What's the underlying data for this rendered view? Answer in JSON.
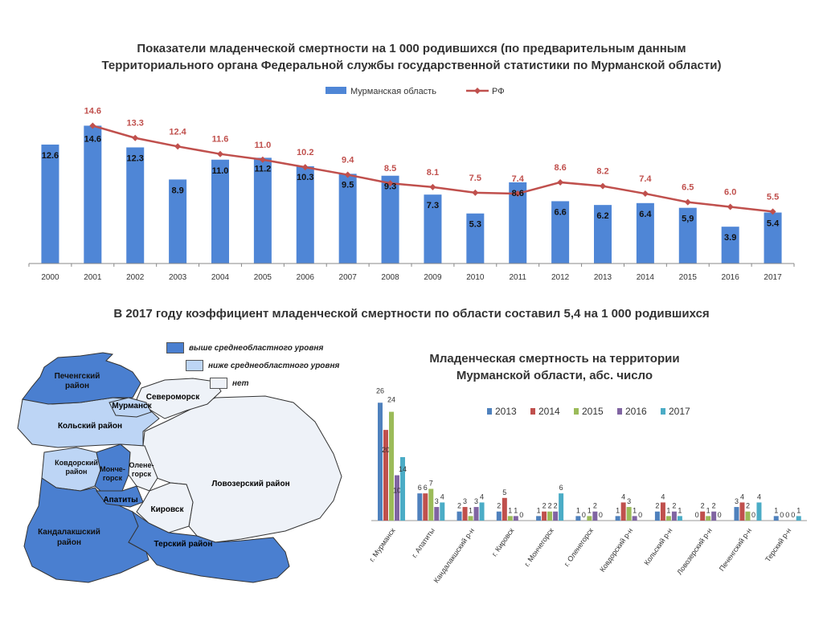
{
  "header": {
    "title_line1": "Показатели младенческой смертности на 1 000 родившихся (по предварительным данным",
    "title_line2": "Территориального органа Федеральной службы государственной статистики по Мурманской области)"
  },
  "chart_data": [
    {
      "type": "bar",
      "categories": [
        "2000",
        "2001",
        "2002",
        "2003",
        "2004",
        "2005",
        "2006",
        "2007",
        "2008",
        "2009",
        "2010",
        "2011",
        "2012",
        "2013",
        "2014",
        "2015",
        "2016",
        "2017"
      ],
      "series": [
        {
          "name": "Мурманская область",
          "kind": "bar",
          "color": "#4F86D6",
          "values": [
            12.6,
            14.6,
            12.3,
            8.9,
            11.0,
            11.2,
            10.3,
            9.5,
            9.3,
            7.3,
            5.3,
            8.6,
            6.6,
            6.2,
            6.4,
            5.9,
            3.9,
            5.4
          ],
          "labels": [
            "12.6",
            "14.6",
            "12.3",
            "8.9",
            "11.0",
            "11.2",
            "10.3",
            "9.5",
            "9.3",
            "7.3",
            "5.3",
            "8.6",
            "6.6",
            "6.2",
            "6.4",
            "5,9",
            "3.9",
            "5.4"
          ]
        },
        {
          "name": "РФ",
          "kind": "line",
          "color": "#C0504D",
          "values": [
            null,
            14.6,
            13.3,
            12.4,
            11.6,
            11.0,
            10.2,
            9.4,
            8.5,
            8.1,
            7.5,
            7.4,
            8.6,
            8.2,
            7.4,
            6.5,
            6.0,
            5.5
          ],
          "labels": [
            "",
            "14.6",
            "13.3",
            "12.4",
            "11.6",
            "11.0",
            "10.2",
            "9.4",
            "8.5",
            "8.1",
            "7.5",
            "7.4",
            "8.6",
            "8.2",
            "7.4",
            "6.5",
            "6.0",
            "5.5"
          ]
        }
      ],
      "legend": "top",
      "ylim": [
        0,
        16
      ]
    },
    {
      "type": "bar",
      "title": "Младенческая смертность на территории Мурманской области, абс. число",
      "categories": [
        "г. Мурманск",
        "г. Апатиты",
        "Кандалакшский р-н",
        "г. Кировск",
        "г. Мончегорск",
        "г. Оленегорск",
        "Ковдорский р-н",
        "Кольский р-н",
        "Ловозерский р-н",
        "Печенгский р-н",
        "Терский р-н"
      ],
      "series": [
        {
          "name": "2013",
          "color": "#4F81BD",
          "values": [
            26,
            6,
            2,
            2,
            1,
            1,
            1,
            2,
            0,
            3,
            1
          ]
        },
        {
          "name": "2014",
          "color": "#C0504D",
          "values": [
            20,
            6,
            3,
            5,
            2,
            0,
            4,
            4,
            2,
            4,
            0
          ]
        },
        {
          "name": "2015",
          "color": "#9BBB59",
          "values": [
            24,
            7,
            1,
            1,
            2,
            1,
            3,
            1,
            1,
            2,
            0
          ]
        },
        {
          "name": "2016",
          "color": "#8064A2",
          "values": [
            10,
            3,
            3,
            1,
            2,
            2,
            1,
            2,
            2,
            0,
            0
          ]
        },
        {
          "name": "2017",
          "color": "#4BACC6",
          "values": [
            14,
            4,
            4,
            0,
            6,
            0,
            0,
            1,
            0,
            4,
            1
          ]
        }
      ],
      "legend": "top-right",
      "ylim": [
        0,
        28
      ]
    }
  ],
  "subtitle": "В 2017 году коэффициент младенческой смертности по области составил 5,4 на 1 000 родившихся",
  "map": {
    "legend": [
      {
        "label": "выше среднеобластного уровня",
        "color": "#4A7FD0"
      },
      {
        "label": "ниже среднеобластного уровня",
        "color": "#BDD5F5"
      },
      {
        "label": "нет",
        "color": "#EEF2F8"
      }
    ],
    "regions": {
      "pechenga": "Печенгский район",
      "murmansk": "Мурманск",
      "severomorsk": "Североморск",
      "kola": "Кольский район",
      "kovdor": "Ковдорский район",
      "monchegorsk": "Монче-горск",
      "olenegorsk": "Олене-горск",
      "lovozero": "Ловозерский район",
      "apatity": "Апатиты",
      "kirovsk": "Кировск",
      "kandalaksha": "Кандалакшский район",
      "tersky": "Терский район"
    }
  }
}
